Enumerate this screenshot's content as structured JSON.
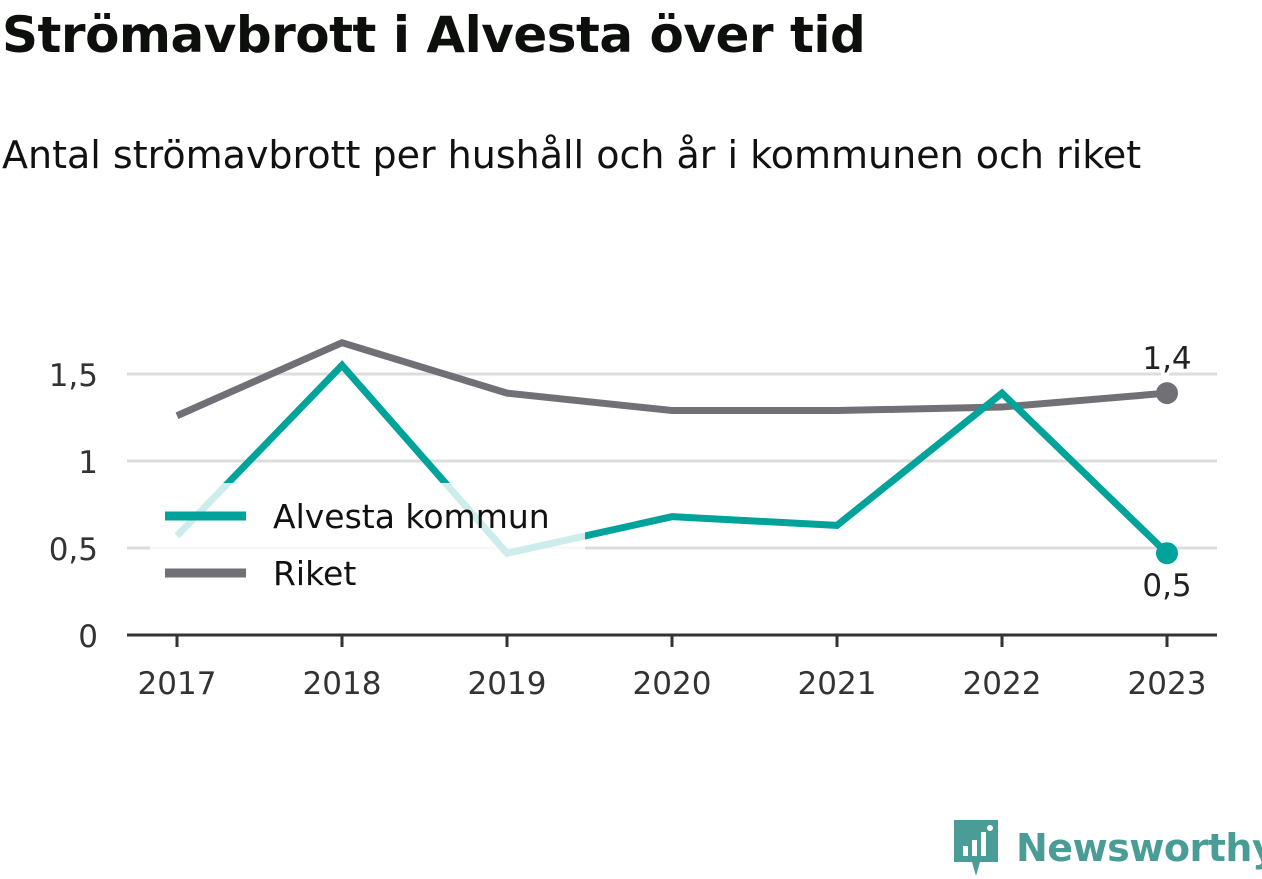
{
  "title": "Strömavbrott i Alvesta över tid",
  "subtitle": "Antal strömavbrott per hushåll och år i kommunen och riket",
  "brand": {
    "name": "Newsworthy"
  },
  "colors": {
    "alvesta": "#00a39a",
    "riket": "#717077",
    "grid": "#dddddd",
    "axis": "#333333"
  },
  "chart_data": {
    "type": "line",
    "x": [
      "2017",
      "2018",
      "2019",
      "2020",
      "2021",
      "2022",
      "2023"
    ],
    "series": [
      {
        "name": "Alvesta kommun",
        "color": "#00a39a",
        "values": [
          0.57,
          1.55,
          0.47,
          0.68,
          0.63,
          1.39,
          0.47
        ],
        "end_label": "0,5"
      },
      {
        "name": "Riket",
        "color": "#717077",
        "values": [
          1.26,
          1.68,
          1.39,
          1.29,
          1.29,
          1.31,
          1.39
        ],
        "end_label": "1,4"
      }
    ],
    "y_ticks": [
      {
        "value": 0,
        "label": "0"
      },
      {
        "value": 0.5,
        "label": "0,5"
      },
      {
        "value": 1,
        "label": "1"
      },
      {
        "value": 1.5,
        "label": "1,5"
      }
    ],
    "ylim": [
      0,
      1.5
    ],
    "grid": true,
    "legend_position": "left"
  }
}
